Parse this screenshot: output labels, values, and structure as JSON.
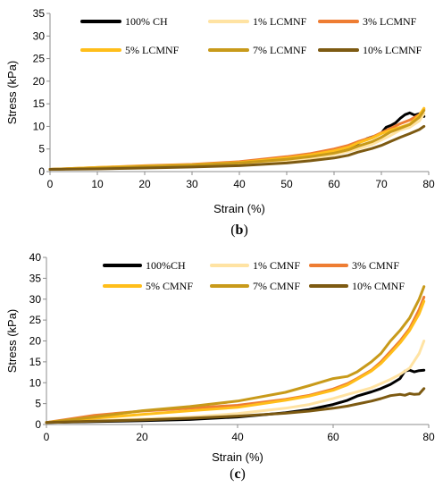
{
  "chart_data": [
    {
      "type": "line",
      "caption_letter": "b",
      "xlabel": "Strain (%)",
      "ylabel": "Stress (kPa)",
      "xlim": [
        0,
        80
      ],
      "ylim": [
        0,
        35
      ],
      "xticks": [
        0,
        10,
        20,
        30,
        40,
        50,
        60,
        70,
        80
      ],
      "yticks": [
        0,
        5,
        10,
        15,
        20,
        25,
        30,
        35
      ],
      "grid": false,
      "legend_placement": "top",
      "series": [
        {
          "name": "100% CH",
          "color": "#000000",
          "x": [
            0,
            10,
            20,
            30,
            40,
            50,
            55,
            60,
            63,
            65,
            67,
            69,
            70,
            71,
            72,
            73,
            74,
            75,
            76,
            77,
            78,
            79
          ],
          "y": [
            0.5,
            0.8,
            1.0,
            1.2,
            1.6,
            2.5,
            3.2,
            4.3,
            5.2,
            6.2,
            7.3,
            8.0,
            8.5,
            9.8,
            10.2,
            10.8,
            11.8,
            12.6,
            13.0,
            12.5,
            12.8,
            12.2
          ]
        },
        {
          "name": "1% LCMNF",
          "color": "#FFE3A3",
          "x": [
            0,
            10,
            20,
            30,
            40,
            50,
            55,
            60,
            65,
            68,
            70,
            72,
            74,
            76,
            78,
            79
          ],
          "y": [
            0.5,
            0.7,
            0.9,
            1.1,
            1.5,
            2.2,
            2.9,
            3.7,
            5.0,
            6.0,
            7.0,
            8.0,
            9.2,
            9.8,
            11.2,
            12.8
          ]
        },
        {
          "name": "3% LCMNF",
          "color": "#EE7D33",
          "x": [
            0,
            10,
            20,
            30,
            40,
            50,
            55,
            60,
            63,
            65,
            68,
            70,
            72,
            74,
            76,
            78,
            79
          ],
          "y": [
            0.5,
            0.9,
            1.3,
            1.6,
            2.2,
            3.3,
            4.0,
            5.0,
            5.8,
            6.6,
            7.6,
            8.6,
            9.6,
            10.6,
            11.4,
            12.6,
            13.8
          ]
        },
        {
          "name": "5% LCMNF",
          "color": "#FFBE1A",
          "x": [
            0,
            10,
            20,
            30,
            40,
            50,
            55,
            60,
            63,
            65,
            68,
            70,
            72,
            74,
            76,
            78,
            79
          ],
          "y": [
            0.5,
            0.9,
            1.2,
            1.5,
            2.0,
            3.0,
            3.7,
            4.6,
            5.4,
            6.3,
            7.4,
            8.4,
            9.2,
            9.8,
            10.5,
            12.5,
            14.0
          ]
        },
        {
          "name": "7% LCMNF",
          "color": "#C89A1A",
          "x": [
            0,
            10,
            20,
            30,
            40,
            50,
            55,
            60,
            63,
            65,
            68,
            70,
            72,
            74,
            76,
            78,
            79
          ],
          "y": [
            0.5,
            0.8,
            1.1,
            1.4,
            1.9,
            2.7,
            3.3,
            4.1,
            4.8,
            5.6,
            6.6,
            7.6,
            8.8,
            9.6,
            10.4,
            12.0,
            13.5
          ]
        },
        {
          "name": "10% LCMNF",
          "color": "#7D5A12",
          "x": [
            0,
            10,
            20,
            30,
            40,
            50,
            55,
            60,
            63,
            65,
            68,
            70,
            72,
            74,
            76,
            78,
            79
          ],
          "y": [
            0.5,
            0.6,
            0.8,
            1.0,
            1.3,
            1.9,
            2.4,
            3.0,
            3.6,
            4.3,
            5.1,
            5.8,
            6.7,
            7.6,
            8.4,
            9.3,
            10.0
          ]
        }
      ]
    },
    {
      "type": "line",
      "caption_letter": "c",
      "xlabel": "Strain (%)",
      "ylabel": "Stress (kPa)",
      "xlim": [
        0,
        80
      ],
      "ylim": [
        0,
        40
      ],
      "xticks": [
        0,
        20,
        40,
        60,
        80
      ],
      "yticks": [
        0,
        5,
        10,
        15,
        20,
        25,
        30,
        35,
        40
      ],
      "grid": false,
      "legend_placement": "top",
      "series": [
        {
          "name": "100%CH",
          "color": "#000000",
          "x": [
            0,
            10,
            20,
            30,
            40,
            50,
            55,
            60,
            63,
            65,
            68,
            70,
            72,
            74,
            75,
            76,
            77,
            78,
            79
          ],
          "y": [
            0.5,
            0.7,
            0.9,
            1.2,
            1.8,
            2.8,
            3.6,
            4.8,
            5.8,
            6.8,
            7.8,
            8.6,
            9.6,
            11.0,
            12.8,
            13.0,
            12.6,
            12.9,
            13.0
          ]
        },
        {
          "name": "1% CMNF",
          "color": "#FFE3A3",
          "x": [
            0,
            10,
            20,
            30,
            40,
            50,
            55,
            60,
            63,
            65,
            68,
            70,
            72,
            74,
            76,
            78,
            79
          ],
          "y": [
            0.5,
            0.9,
            1.3,
            1.8,
            2.6,
            3.9,
            4.8,
            6.2,
            7.2,
            7.8,
            8.8,
            9.8,
            10.8,
            12.0,
            13.5,
            17.0,
            20.0
          ]
        },
        {
          "name": "3% CMNF",
          "color": "#EE7D33",
          "x": [
            0,
            10,
            20,
            30,
            40,
            50,
            55,
            60,
            63,
            65,
            68,
            70,
            72,
            74,
            76,
            78,
            79
          ],
          "y": [
            0.5,
            2.2,
            3.2,
            3.9,
            4.6,
            6.0,
            7.0,
            8.5,
            9.8,
            11.0,
            13.0,
            15.0,
            17.5,
            20.0,
            23.0,
            27.5,
            30.5
          ]
        },
        {
          "name": "5% CMNF",
          "color": "#FFBE1A",
          "x": [
            0,
            10,
            20,
            30,
            40,
            50,
            55,
            60,
            63,
            65,
            68,
            70,
            72,
            74,
            76,
            78,
            79
          ],
          "y": [
            0.5,
            1.5,
            2.4,
            3.3,
            4.1,
            5.8,
            6.8,
            8.2,
            9.5,
            10.8,
            12.8,
            14.6,
            17.0,
            19.5,
            22.5,
            26.5,
            29.5
          ]
        },
        {
          "name": "7% CMNF",
          "color": "#C89A1A",
          "x": [
            0,
            10,
            20,
            30,
            40,
            50,
            55,
            60,
            63,
            65,
            68,
            70,
            72,
            74,
            76,
            78,
            79
          ],
          "y": [
            0.5,
            1.8,
            3.3,
            4.3,
            5.6,
            7.7,
            9.3,
            11.0,
            11.5,
            12.6,
            15.0,
            17.0,
            20.0,
            22.5,
            25.5,
            30.0,
            33.0
          ]
        },
        {
          "name": "10% CMNF",
          "color": "#7D5A12",
          "x": [
            0,
            10,
            20,
            30,
            40,
            50,
            55,
            60,
            63,
            65,
            68,
            70,
            72,
            74,
            75,
            76,
            77,
            78,
            79
          ],
          "y": [
            0.5,
            0.8,
            1.1,
            1.5,
            2.0,
            2.7,
            3.2,
            3.9,
            4.4,
            4.9,
            5.6,
            6.2,
            6.9,
            7.2,
            7.0,
            7.4,
            7.2,
            7.3,
            8.6
          ]
        }
      ]
    }
  ]
}
